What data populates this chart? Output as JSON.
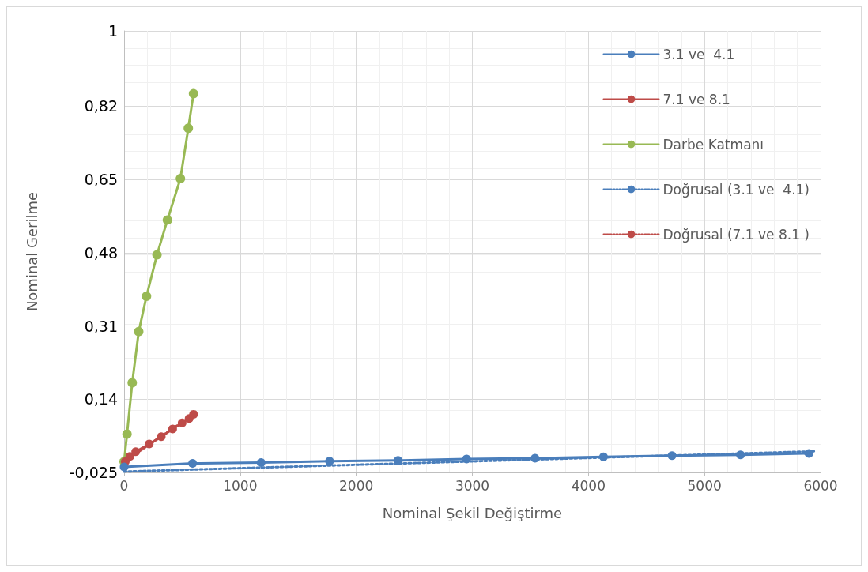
{
  "chart_data": {
    "type": "line",
    "xlabel": "Nominal Şekil Değiştirme",
    "ylabel": "Nominal Gerilme",
    "xlim": [
      0,
      6000
    ],
    "xticks": [
      0,
      1000,
      2000,
      3000,
      4000,
      5000,
      6000
    ],
    "ylim": [
      -0.025,
      1
    ],
    "yticks": [
      {
        "value": -0.025,
        "label": "-0,025"
      },
      {
        "value": 0.145,
        "label": "0,14"
      },
      {
        "value": 0.315,
        "label": "0,31"
      },
      {
        "value": 0.485,
        "label": "0,48"
      },
      {
        "value": 0.655,
        "label": "0,65"
      },
      {
        "value": 0.825,
        "label": "0,82"
      },
      {
        "value": 1,
        "label": "1"
      }
    ],
    "grid": true,
    "legend": "top right",
    "series": [
      {
        "name": "3.1 ve  4.1",
        "color": "#4a7ebb",
        "marker": "circle",
        "line_style": "solid",
        "x": [
          0,
          590,
          1180,
          1770,
          2360,
          2950,
          3540,
          4130,
          4720,
          5310,
          5900
        ],
        "values": [
          -0.012,
          -0.004,
          -0.002,
          0.001,
          0.003,
          0.006,
          0.008,
          0.011,
          0.014,
          0.016,
          0.019
        ]
      },
      {
        "name": "7.1 ve 8.1",
        "color": "#be4b48",
        "marker": "circle",
        "line_style": "solid",
        "x": [
          10,
          50,
          100,
          216,
          320,
          418,
          500,
          560,
          598
        ],
        "values": [
          0.0,
          0.012,
          0.023,
          0.041,
          0.058,
          0.076,
          0.09,
          0.1,
          0.11
        ]
      },
      {
        "name": "Darbe Katmanı",
        "color": "#98b954",
        "marker": "circle",
        "line_style": "solid",
        "x": [
          0,
          25,
          70,
          126,
          193,
          283,
          373,
          485,
          553,
          598
        ],
        "values": [
          0.0,
          0.064,
          0.183,
          0.302,
          0.384,
          0.48,
          0.561,
          0.657,
          0.774,
          0.854
        ]
      },
      {
        "name": "Doğrusal (3.1 ve  4.1)",
        "color": "#4a7ebb",
        "marker": "none",
        "line_style": "dotted",
        "x": [
          0,
          5950
        ],
        "values": [
          -0.023,
          0.024
        ]
      },
      {
        "name": "Doğrusal (7.1 ve 8.1 )",
        "color": "#be4b48",
        "marker": "none",
        "line_style": "dotted",
        "x": [
          0,
          600
        ],
        "values": [
          0.0,
          0.11
        ]
      }
    ]
  }
}
